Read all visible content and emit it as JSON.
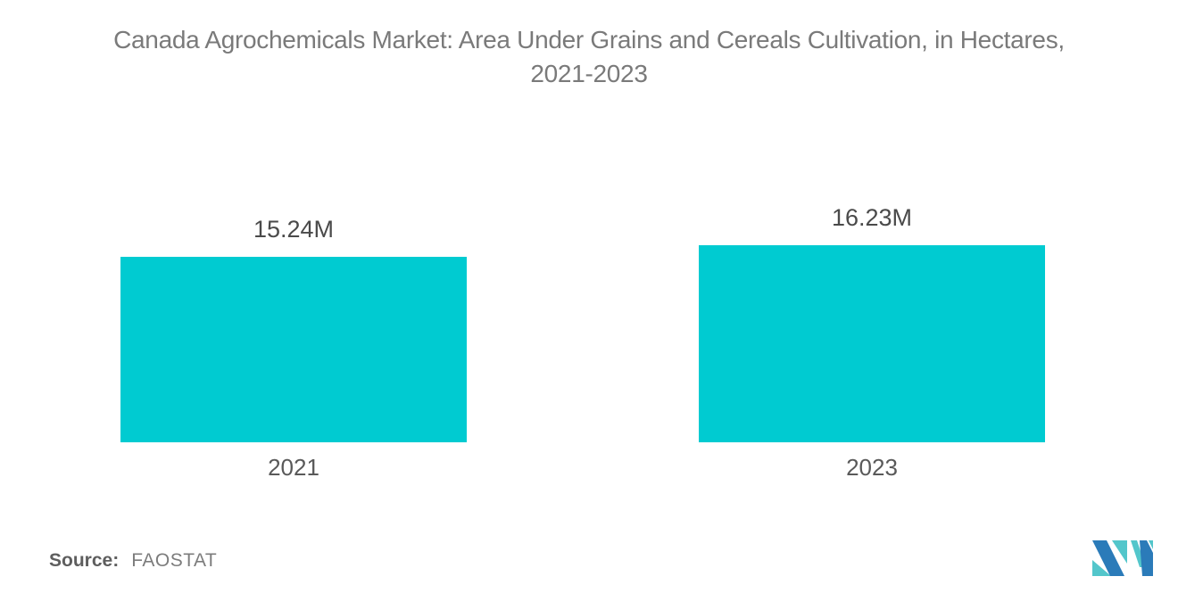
{
  "title": {
    "line1": "Canada Agrochemicals Market: Area Under Grains and Cereals Cultivation, in Hectares,",
    "line2": "2021-2023"
  },
  "chart_data": {
    "type": "bar",
    "title": "Canada Agrochemicals Market: Area Under Grains and Cereals Cultivation, in Hectares, 2021-2023",
    "categories": [
      "2021",
      "2023"
    ],
    "values": [
      15240000,
      16230000
    ],
    "value_labels": [
      "15.24M",
      "16.23M"
    ],
    "unit": "Hectares",
    "ylabel": "",
    "xlabel": "",
    "ylim": [
      0,
      16230000
    ],
    "grid": false,
    "legend": false,
    "bar_color": "#00CBD1"
  },
  "source": {
    "prefix": "Source:",
    "name": "FAOSTAT"
  },
  "logo": {
    "name": "mordor-intelligence-logo",
    "blue": "#2B7BB9",
    "teal": "#53C6CB"
  }
}
